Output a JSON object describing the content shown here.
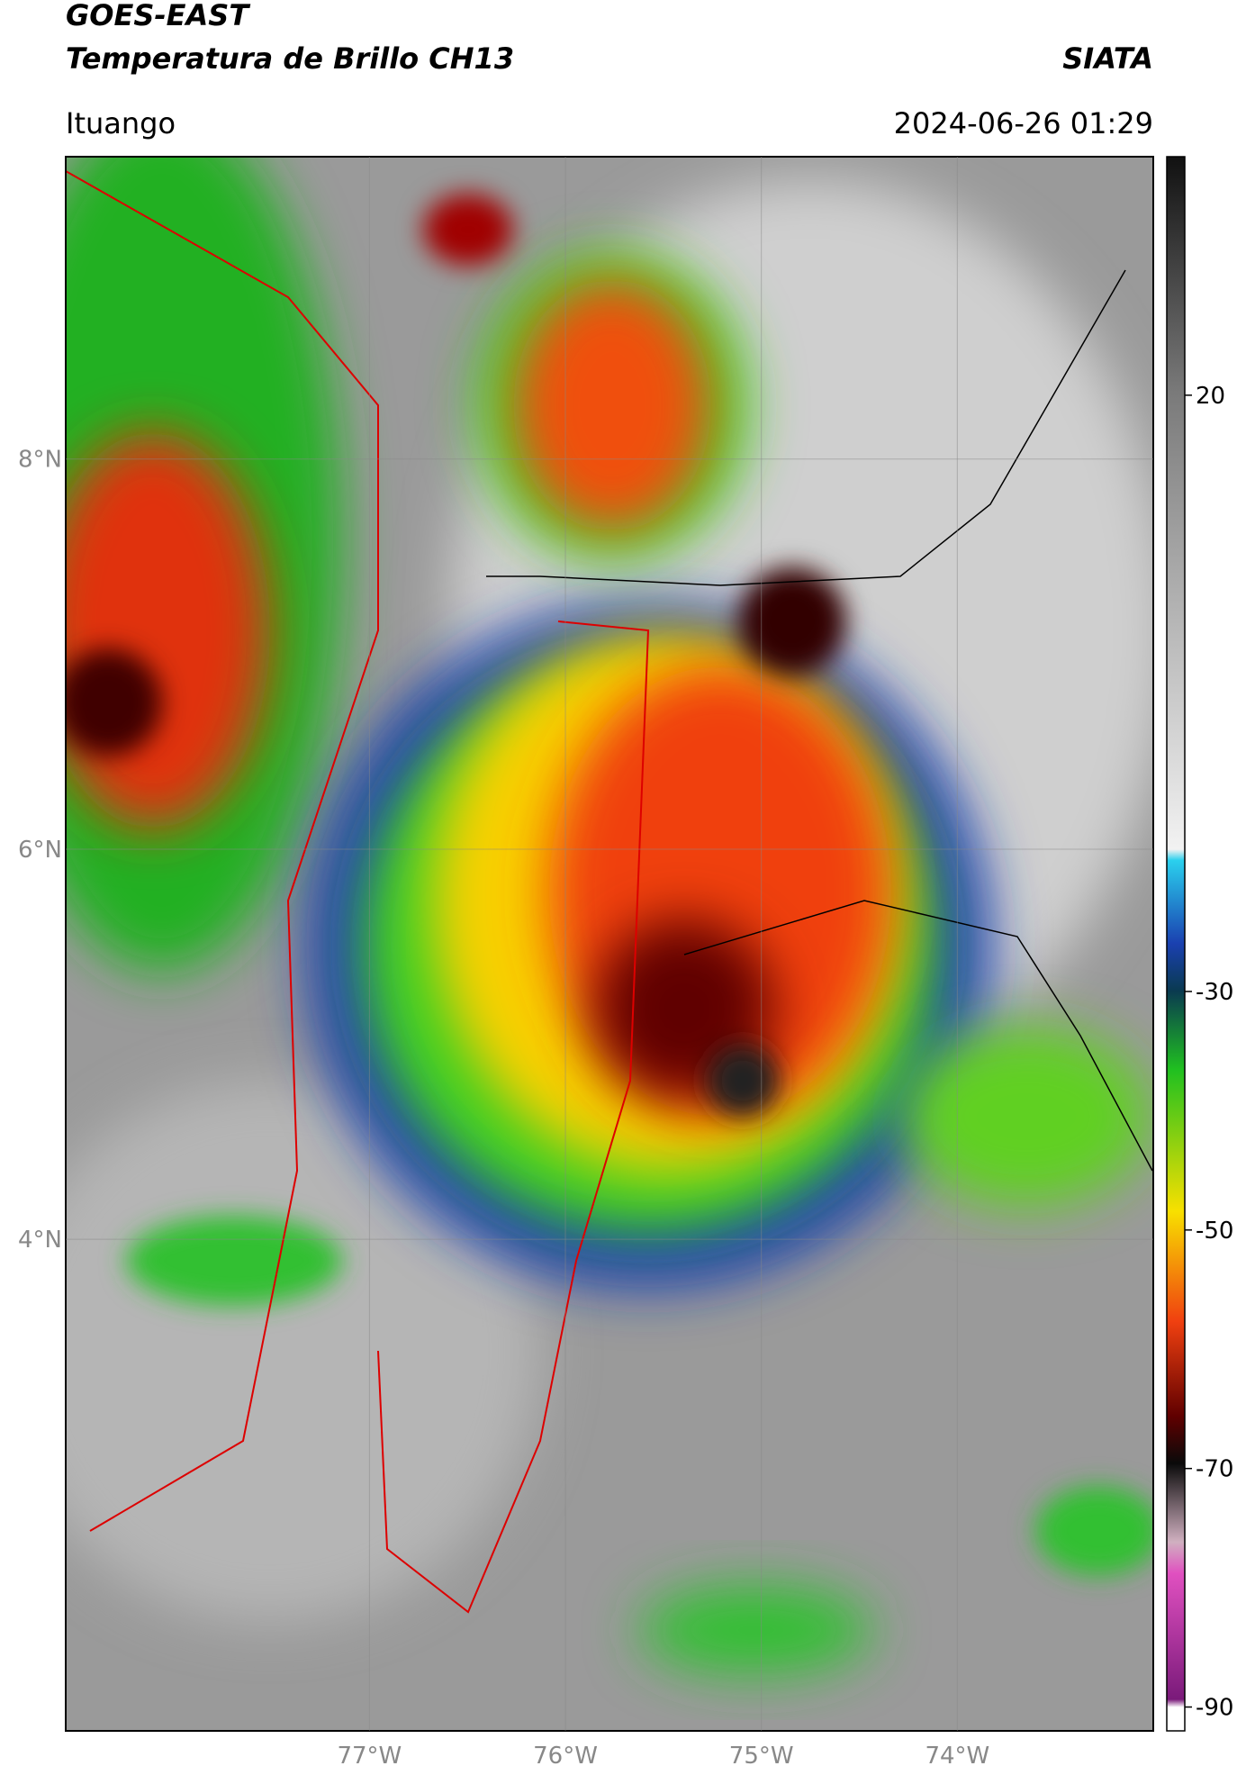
{
  "header": {
    "title": "GOES-EAST",
    "subtitle": "Temperatura de Brillo CH13",
    "brand": "SIATA",
    "location": "Ituango",
    "timestamp": "2024-06-26 01:29"
  },
  "map": {
    "latlim": [
      1.48,
      9.55
    ],
    "lonlim": [
      -78.55,
      -73.0
    ],
    "latticks": [
      {
        "value": 8,
        "label": "8°N"
      },
      {
        "value": 6,
        "label": "6°N"
      },
      {
        "value": 4,
        "label": "4°N"
      }
    ],
    "lonticks": [
      {
        "value": -77,
        "label": "77°W"
      },
      {
        "value": -76,
        "label": "76°W"
      },
      {
        "value": -75,
        "label": "75°W"
      },
      {
        "value": -74,
        "label": "74°W"
      }
    ],
    "grid": true
  },
  "colorbar": {
    "lim": [
      -92,
      40
    ],
    "ticks": [
      20,
      -30,
      -50,
      -70,
      -90
    ]
  }
}
